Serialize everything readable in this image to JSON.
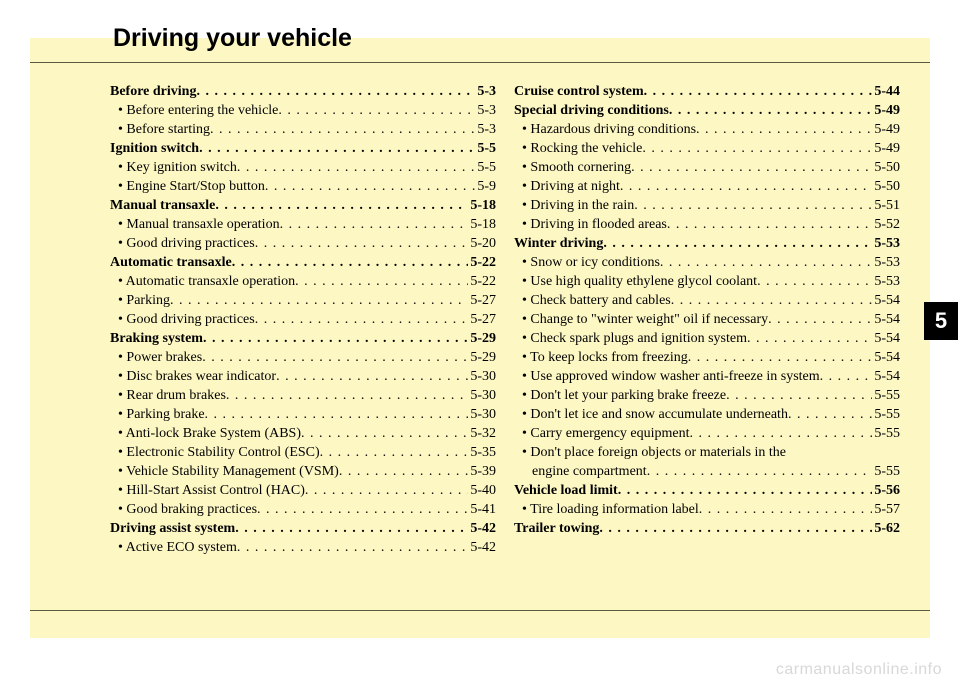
{
  "title": "Driving your vehicle",
  "chapter_number": "5",
  "watermark": "carmanualsonline.info",
  "colors": {
    "page_bg": "#fdf7c4",
    "outer_bg": "#ffffff",
    "rule": "#5a5a3f",
    "text": "#000000",
    "tab_bg": "#000000",
    "tab_fg": "#ffffff",
    "watermark": "#d8d8d8"
  },
  "left_column": [
    {
      "type": "section",
      "label": "Before driving",
      "page": "5-3"
    },
    {
      "type": "sub",
      "label": "• Before entering the vehicle",
      "page": "5-3"
    },
    {
      "type": "sub",
      "label": "• Before starting",
      "page": "5-3"
    },
    {
      "type": "section",
      "label": "Ignition switch",
      "page": "5-5"
    },
    {
      "type": "sub",
      "label": "• Key ignition switch",
      "page": "5-5"
    },
    {
      "type": "sub",
      "label": "• Engine Start/Stop button",
      "page": "5-9"
    },
    {
      "type": "section",
      "label": "Manual transaxle",
      "page": "5-18"
    },
    {
      "type": "sub",
      "label": "• Manual transaxle operation",
      "page": "5-18"
    },
    {
      "type": "sub",
      "label": "• Good driving practices",
      "page": "5-20"
    },
    {
      "type": "section",
      "label": "Automatic transaxle",
      "page": "5-22"
    },
    {
      "type": "sub",
      "label": "• Automatic transaxle operation",
      "page": "5-22"
    },
    {
      "type": "sub",
      "label": "• Parking",
      "page": "5-27"
    },
    {
      "type": "sub",
      "label": "• Good driving practices",
      "page": "5-27"
    },
    {
      "type": "section",
      "label": "Braking system",
      "page": "5-29"
    },
    {
      "type": "sub",
      "label": "• Power brakes",
      "page": "5-29"
    },
    {
      "type": "sub",
      "label": "• Disc brakes wear indicator",
      "page": "5-30"
    },
    {
      "type": "sub",
      "label": "• Rear drum brakes",
      "page": "5-30"
    },
    {
      "type": "sub",
      "label": "• Parking brake",
      "page": "5-30"
    },
    {
      "type": "sub",
      "label": "• Anti-lock Brake System (ABS)",
      "page": "5-32"
    },
    {
      "type": "sub",
      "label": "• Electronic Stability Control (ESC)",
      "page": "5-35"
    },
    {
      "type": "sub",
      "label": "• Vehicle Stability Management (VSM)",
      "page": "5-39"
    },
    {
      "type": "sub",
      "label": "• Hill-Start  Assist Control (HAC)",
      "page": "5-40"
    },
    {
      "type": "sub",
      "label": "• Good braking practices",
      "page": "5-41"
    },
    {
      "type": "section",
      "label": "Driving assist system",
      "page": "5-42"
    },
    {
      "type": "sub",
      "label": "• Active ECO system",
      "page": "5-42"
    }
  ],
  "right_column": [
    {
      "type": "section",
      "label": "Cruise control system",
      "page": "5-44"
    },
    {
      "type": "section",
      "label": "Special driving conditions",
      "page": "5-49"
    },
    {
      "type": "sub",
      "label": "• Hazardous driving conditions",
      "page": "5-49"
    },
    {
      "type": "sub",
      "label": "• Rocking the vehicle",
      "page": "5-49"
    },
    {
      "type": "sub",
      "label": "• Smooth cornering",
      "page": "5-50"
    },
    {
      "type": "sub",
      "label": "• Driving at night",
      "page": "5-50"
    },
    {
      "type": "sub",
      "label": "• Driving in the rain",
      "page": "5-51"
    },
    {
      "type": "sub",
      "label": "• Driving in flooded areas",
      "page": "5-52"
    },
    {
      "type": "section",
      "label": "Winter driving",
      "page": "5-53"
    },
    {
      "type": "sub",
      "label": "• Snow or icy conditions",
      "page": "5-53"
    },
    {
      "type": "sub",
      "label": "• Use high quality ethylene glycol coolant",
      "page": "5-53"
    },
    {
      "type": "sub",
      "label": "• Check battery and cables",
      "page": "5-54"
    },
    {
      "type": "sub",
      "label": "• Change to \"winter weight\" oil if necessary",
      "page": "5-54"
    },
    {
      "type": "sub",
      "label": "• Check spark plugs and ignition system",
      "page": "5-54"
    },
    {
      "type": "sub",
      "label": "• To keep locks from freezing",
      "page": "5-54"
    },
    {
      "type": "sub",
      "label": "• Use approved window washer anti-freeze in system",
      "page": "5-54"
    },
    {
      "type": "sub",
      "label": "• Don't let your parking brake freeze",
      "page": "5-55"
    },
    {
      "type": "sub",
      "label": "• Don't let ice and snow accumulate underneath",
      "page": "5-55"
    },
    {
      "type": "sub",
      "label": "• Carry emergency equipment",
      "page": "5-55"
    },
    {
      "type": "sub",
      "label": "• Don't place foreign objects or materials in the",
      "page": ""
    },
    {
      "type": "sub-cont",
      "label": "engine compartment",
      "page": "5-55"
    },
    {
      "type": "section",
      "label": "Vehicle load limit",
      "page": "5-56"
    },
    {
      "type": "sub",
      "label": "• Tire loading information label",
      "page": "5-57"
    },
    {
      "type": "section",
      "label": "Trailer towing",
      "page": "5-62"
    }
  ]
}
